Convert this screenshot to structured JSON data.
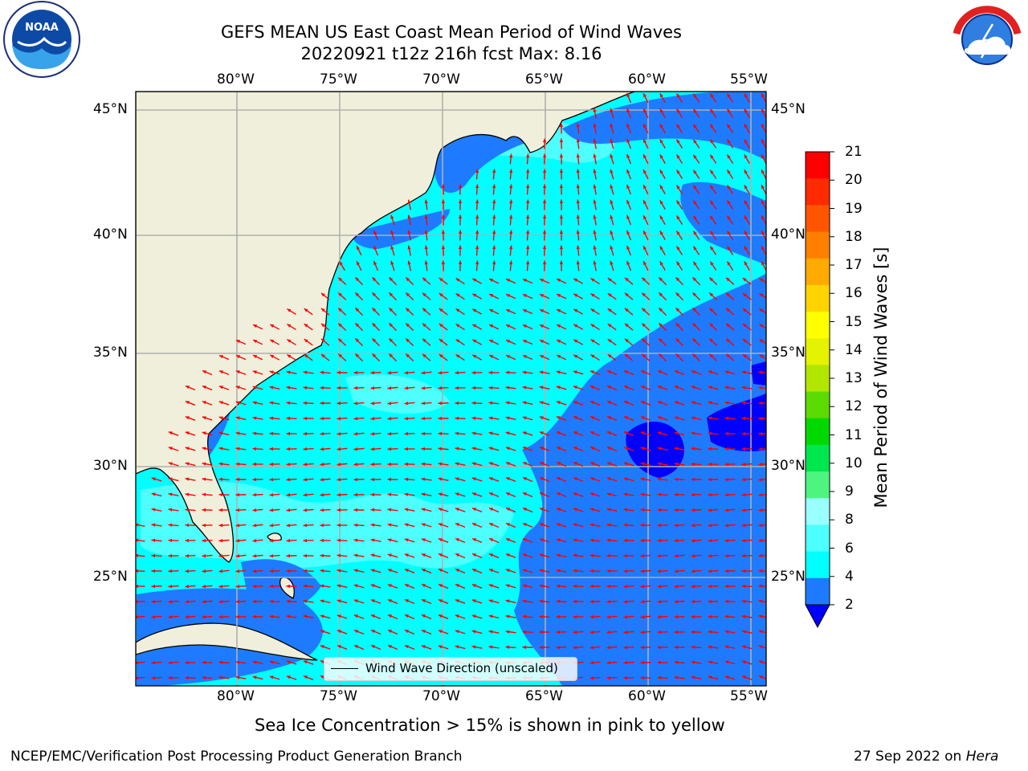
{
  "title": {
    "line1": "GEFS MEAN US East Coast Mean Period of Wind Waves",
    "line2": "20220921 t12z 216h fcst   Max: 8.16"
  },
  "subtitle": "Sea Ice Concentration > 15% is shown in pink to yellow",
  "footer": {
    "left": "NCEP/EMC/Verification Post Processing Product Generation Branch",
    "date": "27 Sep 2022 on",
    "machine": "Hera"
  },
  "legend": {
    "label": "Wind Wave Direction (unscaled)"
  },
  "logos": {
    "left": "NOAA",
    "right": "NATIONAL WEATHER SERVICE"
  },
  "map": {
    "lon_ticks": [
      "80°W",
      "75°W",
      "70°W",
      "65°W",
      "60°W",
      "55°W"
    ],
    "lat_ticks": [
      "45°N",
      "40°N",
      "35°N",
      "30°N",
      "25°N"
    ],
    "land_color": "#efefdb",
    "coast_color": "#000000",
    "arrow_color": "#ff0000"
  },
  "colorbar": {
    "label": "Mean Period of Wind Waves [s]",
    "ticks": [
      "21",
      "20",
      "19",
      "18",
      "17",
      "16",
      "15",
      "14",
      "13",
      "12",
      "11",
      "10",
      "9",
      "8",
      "6",
      "4",
      "2"
    ],
    "colors": [
      "#ff0000",
      "#ff2a00",
      "#ff5500",
      "#ff8000",
      "#ffaa00",
      "#ffd400",
      "#ffff00",
      "#e5f200",
      "#b2e600",
      "#5cdb00",
      "#00d900",
      "#00e64d",
      "#4df580",
      "#99ffff",
      "#4dffff",
      "#00ffff",
      "#1e7bff"
    ],
    "under_color": "#0000ff"
  },
  "chart_data": {
    "type": "heatmap",
    "variable": "Mean Period of Wind Waves [s]",
    "max": 8.16,
    "levels": [
      2,
      4,
      6,
      8,
      9,
      10,
      11,
      12,
      13,
      14,
      15,
      16,
      17,
      18,
      19,
      20,
      21
    ]
  }
}
